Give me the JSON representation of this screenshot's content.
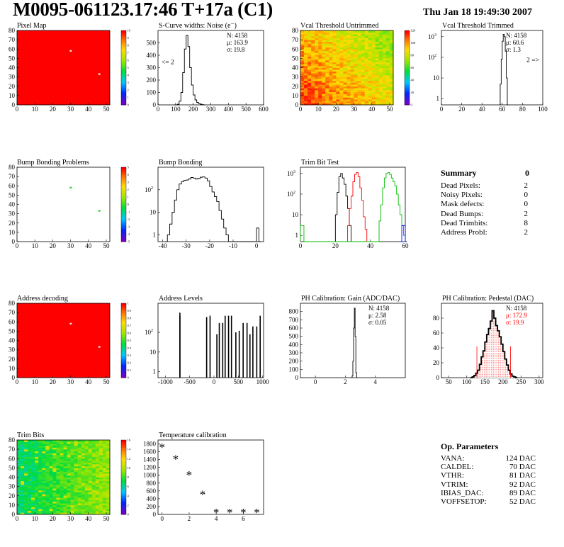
{
  "header": {
    "title": "M0095-061123.17:46 T+17a (C1)",
    "date": "Thu Jan 18 19:49:30 2007"
  },
  "colors": {
    "black": "#000000",
    "red": "#ff0000",
    "green": "#00bb00",
    "blue": "#0000ff",
    "fill_red": "#ff8080"
  },
  "chart_data": [
    {
      "id": "pixel-map",
      "type": "heatmap",
      "title": "Pixel Map",
      "xlim": [
        0,
        52
      ],
      "ylim": [
        0,
        80
      ],
      "xticks": [
        0,
        10,
        20,
        30,
        40,
        50
      ],
      "yticks": [
        0,
        10,
        20,
        30,
        40,
        50,
        60,
        70,
        80
      ],
      "palette": "uniform-red",
      "z_range": [
        0,
        10
      ],
      "zticks": [
        0,
        1,
        2,
        3,
        4,
        5,
        6,
        7,
        8,
        9,
        10
      ],
      "marks": [
        {
          "x": 30,
          "y": 58,
          "color": "#ffdddd"
        },
        {
          "x": 46,
          "y": 33,
          "color": "#ffdddd"
        }
      ]
    },
    {
      "id": "scurve-widths",
      "type": "line",
      "title": "S-Curve widths: Noise (e⁻)",
      "xlim": [
        0,
        600
      ],
      "ylim": [
        0,
        600
      ],
      "log": false,
      "xticks": [
        0,
        100,
        200,
        300,
        400,
        500,
        600
      ],
      "yticks": [
        0,
        100,
        200,
        300,
        400,
        500
      ],
      "stats": [
        {
          "t": "N: 4158"
        },
        {
          "t": "μ: 163.9"
        },
        {
          "t": "σ: 19.8"
        }
      ],
      "annotations": [
        {
          "t": "<= 2",
          "x": 20,
          "y": 330
        }
      ],
      "series": [
        {
          "color": "#000000",
          "x": [
            90,
            110,
            120,
            130,
            140,
            150,
            160,
            170,
            180,
            190,
            200,
            210,
            220,
            230,
            240,
            250,
            260
          ],
          "y": [
            0,
            5,
            30,
            100,
            260,
            450,
            560,
            470,
            300,
            160,
            80,
            40,
            20,
            10,
            5,
            2,
            0
          ]
        }
      ]
    },
    {
      "id": "vcal-untrimmed",
      "type": "heatmap",
      "title": "Vcal Threshold Untrimmed",
      "xlim": [
        0,
        52
      ],
      "ylim": [
        0,
        80
      ],
      "xticks": [
        0,
        10,
        20,
        30,
        40,
        50
      ],
      "yticks": [
        0,
        10,
        20,
        30,
        40,
        50,
        60,
        70,
        80
      ],
      "palette": "rainbow",
      "z_range": [
        0,
        140
      ],
      "zticks": [
        0,
        20,
        40,
        60,
        80,
        100,
        120
      ],
      "pattern": "diagonal-warm"
    },
    {
      "id": "vcal-trimmed",
      "type": "line",
      "title": "Vcal Threshold Trimmed",
      "xlim": [
        0,
        100
      ],
      "ylim": [
        0.5,
        2000
      ],
      "log": true,
      "xticks": [
        0,
        20,
        40,
        60,
        80,
        100
      ],
      "yticks": [
        1,
        10,
        100,
        1000
      ],
      "stats": [
        {
          "t": "N: 4158"
        },
        {
          "t": "μ: 60.6"
        },
        {
          "t": "σ: 1.3"
        }
      ],
      "annotations": [
        {
          "t": "2 =>",
          "x": 84,
          "y": 60
        }
      ],
      "series": [
        {
          "color": "#000000",
          "x": [
            57,
            58,
            59,
            60,
            61,
            62,
            63,
            64,
            65
          ],
          "y": [
            0.5,
            5,
            80,
            600,
            1300,
            1000,
            200,
            10,
            0.5
          ]
        }
      ]
    },
    {
      "id": "bump-problems",
      "type": "heatmap",
      "title": "Bump Bonding Problems",
      "xlim": [
        0,
        52
      ],
      "ylim": [
        0,
        80
      ],
      "xticks": [
        0,
        10,
        20,
        30,
        40,
        50
      ],
      "yticks": [
        0,
        10,
        20,
        30,
        40,
        50,
        60,
        70,
        80
      ],
      "palette": "empty",
      "z_range": [
        -5,
        5
      ],
      "zticks": [
        -5,
        -4,
        -3,
        -2,
        -1,
        0,
        1,
        2,
        3,
        4,
        5
      ],
      "marks": [
        {
          "x": 30,
          "y": 58,
          "color": "#33cc33"
        },
        {
          "x": 46,
          "y": 33,
          "color": "#33cc33"
        }
      ]
    },
    {
      "id": "bump-bonding",
      "type": "line",
      "title": "Bump Bonding",
      "xlim": [
        -42,
        3
      ],
      "ylim": [
        0.5,
        1000
      ],
      "log": true,
      "xticks": [
        -40,
        -30,
        -20,
        -10,
        0
      ],
      "yticks": [
        1,
        10,
        100
      ],
      "series": [
        {
          "color": "#000000",
          "x": [
            -39,
            -38,
            -37,
            -36,
            -35,
            -34,
            -33,
            -32,
            -31,
            -30,
            -29,
            -28,
            -27,
            -26,
            -25,
            -24,
            -23,
            -22,
            -21,
            -20,
            -19,
            -18,
            -17,
            -16,
            -15,
            -14,
            -13,
            -12,
            -11,
            -10,
            -9,
            -8,
            -7,
            -6,
            -5,
            -4,
            -3,
            -2,
            -1,
            0,
            1
          ],
          "y": [
            0.5,
            1,
            3,
            10,
            35,
            100,
            180,
            230,
            260,
            270,
            300,
            350,
            330,
            300,
            320,
            360,
            370,
            330,
            250,
            140,
            80,
            50,
            30,
            12,
            5,
            2,
            1,
            0.5,
            0.5,
            0.5,
            0.5,
            0.5,
            0.5,
            0.5,
            0.5,
            0.5,
            0.5,
            0.5,
            0.5,
            2,
            0.5
          ]
        }
      ]
    },
    {
      "id": "trim-bit-test",
      "type": "line",
      "title": "Trim Bit Test",
      "xlim": [
        0,
        60
      ],
      "ylim": [
        0.5,
        2000
      ],
      "log": true,
      "xticks": [
        0,
        20,
        40,
        60
      ],
      "yticks": [
        1,
        10,
        100,
        1000
      ],
      "series": [
        {
          "color": "#000000",
          "x": [
            19,
            20,
            21,
            22,
            23,
            24,
            25,
            26,
            27,
            28,
            29
          ],
          "y": [
            0.5,
            10,
            120,
            700,
            1000,
            600,
            300,
            80,
            20,
            3,
            0.5
          ]
        },
        {
          "color": "#ff0000",
          "x": [
            26,
            27,
            28,
            29,
            30,
            31,
            32,
            33,
            34,
            35,
            36,
            37,
            38
          ],
          "y": [
            0.5,
            3,
            20,
            80,
            400,
            900,
            1100,
            700,
            200,
            50,
            8,
            2,
            0.5
          ]
        },
        {
          "color": "#00bb00",
          "x": [
            0,
            1,
            2,
            44,
            45,
            46,
            47,
            48,
            49,
            50,
            51,
            52,
            53,
            54,
            55,
            56,
            57,
            58,
            59,
            60
          ],
          "y": [
            3,
            3,
            0.5,
            0.5,
            5,
            30,
            200,
            600,
            1000,
            1100,
            900,
            600,
            400,
            250,
            100,
            30,
            10,
            3,
            1,
            0.5
          ]
        },
        {
          "color": "#0000ff",
          "x": [
            57,
            58,
            59,
            60
          ],
          "y": [
            0.5,
            3,
            3,
            0.5
          ]
        }
      ]
    },
    {
      "id": "address-decoding",
      "type": "heatmap",
      "title": "Address decoding",
      "xlim": [
        0,
        52
      ],
      "ylim": [
        0,
        80
      ],
      "xticks": [
        0,
        10,
        20,
        30,
        40,
        50
      ],
      "yticks": [
        0,
        10,
        20,
        30,
        40,
        50,
        60,
        70,
        80
      ],
      "palette": "uniform-red",
      "z_range": [
        0,
        1
      ],
      "zticks": [
        0,
        0.1,
        0.2,
        0.3,
        0.4,
        0.5,
        0.6,
        0.7,
        0.8,
        0.9,
        1
      ],
      "marks": [
        {
          "x": 30,
          "y": 58,
          "color": "#ffdddd"
        },
        {
          "x": 46,
          "y": 33,
          "color": "#ffdddd"
        }
      ]
    },
    {
      "id": "address-levels",
      "type": "bar",
      "title": "Address Levels",
      "xlim": [
        -1150,
        1020
      ],
      "ylim": [
        0.5,
        3000
      ],
      "log": true,
      "xticks": [
        -1000,
        -500,
        0,
        500,
        1000
      ],
      "yticks": [
        1,
        10,
        100
      ],
      "spikes": [
        {
          "x": -700,
          "y": 700
        },
        {
          "x": -700,
          "y": 1000
        },
        {
          "x": -150,
          "y": 600
        },
        {
          "x": -80,
          "y": 700
        },
        {
          "x": 60,
          "y": 80
        },
        {
          "x": 110,
          "y": 300
        },
        {
          "x": 180,
          "y": 300
        },
        {
          "x": 230,
          "y": 700
        },
        {
          "x": 300,
          "y": 700
        },
        {
          "x": 360,
          "y": 700
        },
        {
          "x": 450,
          "y": 100
        },
        {
          "x": 520,
          "y": 120
        },
        {
          "x": 600,
          "y": 300
        },
        {
          "x": 680,
          "y": 300
        },
        {
          "x": 740,
          "y": 80
        },
        {
          "x": 800,
          "y": 200
        },
        {
          "x": 880,
          "y": 200
        },
        {
          "x": 950,
          "y": 700
        }
      ]
    },
    {
      "id": "ph-gain",
      "type": "line",
      "title": "PH Calibration: Gain (ADC/DAC)",
      "xlim": [
        -1,
        6
      ],
      "ylim": [
        0,
        900
      ],
      "log": false,
      "xticks": [
        0,
        2,
        4
      ],
      "yticks": [
        0,
        100,
        200,
        300,
        400,
        500,
        600,
        700,
        800
      ],
      "stats": [
        {
          "t": "N: 4158"
        },
        {
          "t": "μ: 2.58"
        },
        {
          "t": "σ: 0.05"
        }
      ],
      "series": [
        {
          "color": "#000000",
          "x": [
            2.4,
            2.45,
            2.5,
            2.55,
            2.6,
            2.65,
            2.7,
            2.75
          ],
          "y": [
            0,
            20,
            200,
            600,
            840,
            500,
            60,
            0
          ]
        }
      ]
    },
    {
      "id": "ph-pedestal",
      "type": "area",
      "title": "PH Calibration: Pedestal (DAC)",
      "xlim": [
        30,
        310
      ],
      "ylim": [
        0,
        100
      ],
      "log": false,
      "xticks": [
        50,
        100,
        150,
        200,
        250,
        300
      ],
      "yticks": [
        0,
        20,
        40,
        60,
        80
      ],
      "stats": [
        {
          "t": "N: 4158"
        },
        {
          "t": "μ: 172.9",
          "color": "#ff0000"
        },
        {
          "t": "σ: 19.9",
          "color": "#ff0000"
        }
      ],
      "cut_lines": [
        {
          "x": 128,
          "y": 42
        },
        {
          "x": 221,
          "y": 42
        }
      ],
      "series": [
        {
          "color": "#000000",
          "fill": "#ff8080",
          "x": [
            110,
            115,
            120,
            125,
            130,
            135,
            140,
            145,
            150,
            155,
            160,
            165,
            170,
            175,
            180,
            185,
            190,
            195,
            200,
            205,
            210,
            215,
            220,
            225,
            230,
            235
          ],
          "y": [
            0,
            1,
            3,
            6,
            10,
            18,
            28,
            36,
            48,
            58,
            66,
            76,
            90,
            80,
            70,
            63,
            55,
            45,
            35,
            25,
            17,
            10,
            5,
            2,
            1,
            0
          ]
        }
      ]
    },
    {
      "id": "trim-bits",
      "type": "heatmap",
      "title": "Trim Bits",
      "xlim": [
        0,
        52
      ],
      "ylim": [
        0,
        80
      ],
      "xticks": [
        0,
        10,
        20,
        30,
        40,
        50
      ],
      "yticks": [
        0,
        10,
        20,
        30,
        40,
        50,
        60,
        70,
        80
      ],
      "palette": "rainbow",
      "z_range": [
        0,
        16
      ],
      "zticks": [
        0,
        2,
        4,
        6,
        8,
        10,
        12,
        14,
        16
      ],
      "pattern": "trim-green"
    },
    {
      "id": "temperature-calibration",
      "type": "scatter",
      "title": "Temperature calibration",
      "xlim": [
        -0.3,
        7.5
      ],
      "ylim": [
        0,
        1900
      ],
      "log": false,
      "xticks": [
        0,
        2,
        4,
        6
      ],
      "yticks": [
        0,
        200,
        400,
        600,
        800,
        1000,
        1200,
        1400,
        1600,
        1800
      ],
      "marker": "*",
      "series": [
        {
          "color": "#000000",
          "x": [
            0,
            1,
            2,
            3,
            4,
            5,
            6,
            7
          ],
          "y": [
            1720,
            1420,
            1010,
            520,
            50,
            50,
            50,
            50
          ]
        }
      ]
    }
  ],
  "summary": {
    "title": "Summary",
    "total": "0",
    "rows": [
      {
        "label": "Dead Pixels:",
        "value": "2"
      },
      {
        "label": "Noisy Pixels:",
        "value": "0"
      },
      {
        "label": "Mask defects:",
        "value": "0"
      },
      {
        "label": "Dead Bumps:",
        "value": "2"
      },
      {
        "label": "Dead Trimbits:",
        "value": "8"
      },
      {
        "label": "Address Probl:",
        "value": "2"
      }
    ]
  },
  "op_params": {
    "title": "Op. Parameters",
    "rows": [
      {
        "label": "VANA:",
        "value": "124 DAC"
      },
      {
        "label": "CALDEL:",
        "value": "70 DAC"
      },
      {
        "label": "VTHR:",
        "value": "81 DAC"
      },
      {
        "label": "VTRIM:",
        "value": "92 DAC"
      },
      {
        "label": "IBIAS_DAC:",
        "value": "89 DAC"
      },
      {
        "label": "VOFFSETOP:",
        "value": "52 DAC"
      }
    ]
  }
}
